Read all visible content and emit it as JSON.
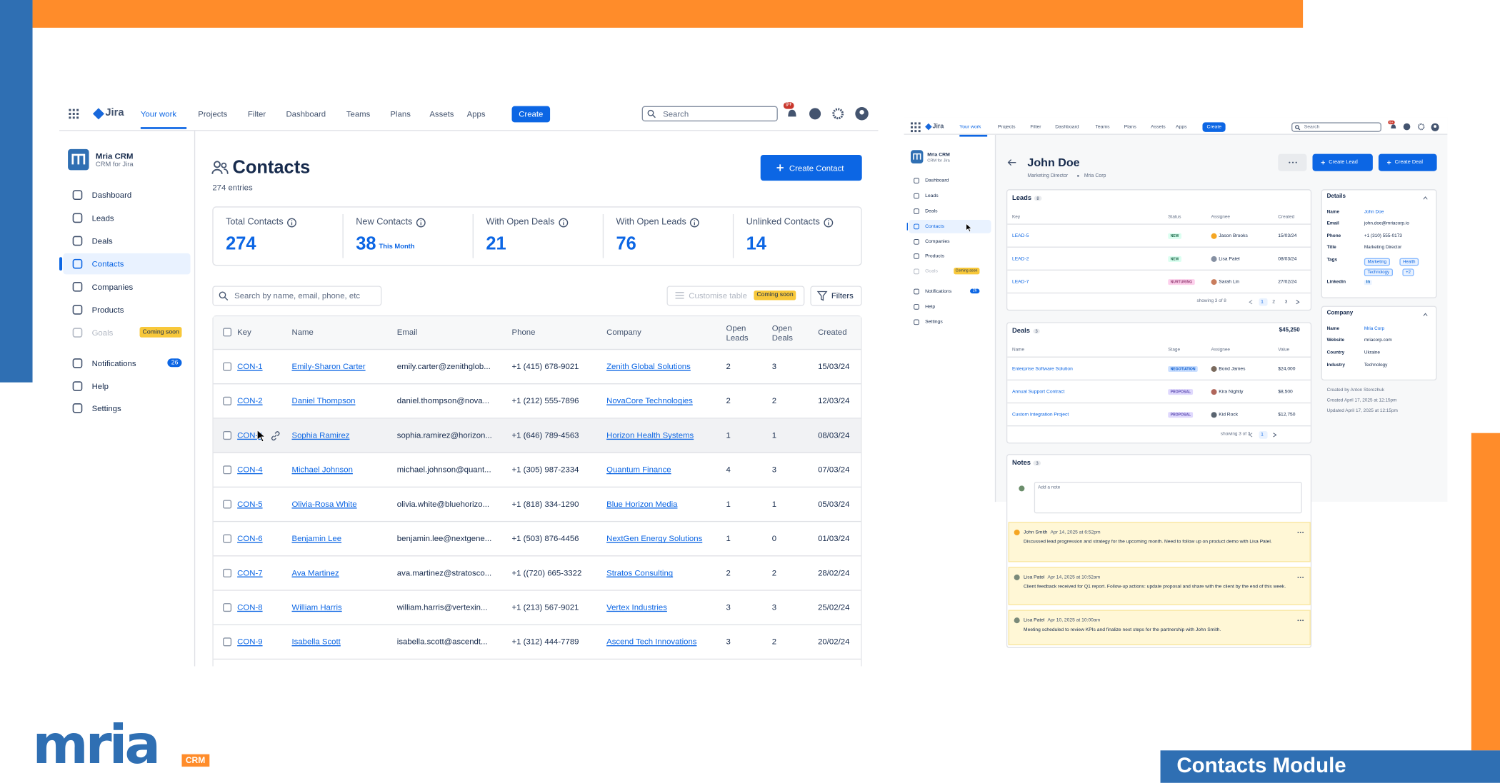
{
  "brand": {
    "logo": "mria",
    "logo_tag": "CRM",
    "caption": "Contacts Module"
  },
  "nav": {
    "app": "Jira",
    "items": [
      "Your work",
      "Projects",
      "Filter",
      "Dashboard",
      "Teams",
      "Plans",
      "Assets",
      "Apps"
    ],
    "create": "Create",
    "search": "Search",
    "badge": "9+"
  },
  "sidebar": {
    "app_name": "Mria CRM",
    "app_sub": "CRM for Jira",
    "items": [
      "Dashboard",
      "Leads",
      "Deals",
      "Contacts",
      "Companies",
      "Products",
      "Goals"
    ],
    "coming_soon": "Coming soon",
    "bottom": [
      "Notifications",
      "Help",
      "Settings"
    ],
    "notif_count": "26"
  },
  "contacts": {
    "title": "Contacts",
    "entries": "274 entries",
    "create_button": "Create Contact",
    "stats": [
      {
        "label": "Total Contacts",
        "value": 274
      },
      {
        "label": "New Contacts",
        "value": 38,
        "note": "This Month"
      },
      {
        "label": "With Open Deals",
        "value": 21
      },
      {
        "label": "With Open Leads",
        "value": 76
      },
      {
        "label": "Unlinked Contacts",
        "value": 14
      }
    ],
    "search_placeholder": "Search by name, email, phone, etc",
    "customise": "Customise table",
    "coming_soon": "Coming soon",
    "filters": "Filters",
    "table": {
      "columns": [
        "Key",
        "Name",
        "Email",
        "Phone",
        "Company",
        "Open Leads",
        "Open Deals",
        "Created"
      ],
      "rows": [
        [
          "CON-1",
          "Emily-Sharon Carter",
          "emily.carter@zenithglob...",
          "+1 (415) 678-9021",
          "Zenith Global Solutions",
          2,
          3,
          "15/03/24"
        ],
        [
          "CON-2",
          "Daniel Thompson",
          "daniel.thompson@nova...",
          "+1 (212) 555-7896",
          "NovaCore Technologies",
          2,
          2,
          "12/03/24"
        ],
        [
          "CON-3",
          "Sophia Ramirez",
          "sophia.ramirez@horizon...",
          "+1 (646) 789-4563",
          "Horizon Health Systems",
          1,
          1,
          "08/03/24"
        ],
        [
          "CON-4",
          "Michael Johnson",
          "michael.johnson@quant...",
          "+1 (305) 987-2334",
          "Quantum Finance",
          4,
          3,
          "07/03/24"
        ],
        [
          "CON-5",
          "Olivia-Rosa White",
          "olivia.white@bluehorizo...",
          "+1 (818) 334-1290",
          "Blue Horizon Media",
          1,
          1,
          "05/03/24"
        ],
        [
          "CON-6",
          "Benjamin Lee",
          "benjamin.lee@nextgene...",
          "+1 (503) 876-4456",
          "NextGen Energy Solutions",
          1,
          0,
          "01/03/24"
        ],
        [
          "CON-7",
          "Ava Martinez",
          "ava.martinez@stratosco...",
          "+1 ((720) 665-3322",
          "Stratos Consulting",
          2,
          2,
          "28/02/24"
        ],
        [
          "CON-8",
          "William Harris",
          "william.harris@vertexin...",
          "+1 (213) 567-9021",
          "Vertex Industries",
          3,
          3,
          "25/02/24"
        ],
        [
          "CON-9",
          "Isabella Scott",
          "isabella.scott@ascendt...",
          "+1 (312) 444-7789",
          "Ascend Tech Innovations",
          3,
          2,
          "20/02/24"
        ]
      ]
    }
  },
  "detail": {
    "name": "John Doe",
    "title": "Marketing Director",
    "company": "Mria Corp",
    "create_lead": "Create Lead",
    "create_deal": "Create Deal",
    "leads": {
      "title": "Leads",
      "count": "8",
      "columns": [
        "Key",
        "Status",
        "Assignee",
        "Created"
      ],
      "rows": [
        [
          "LEAD-5",
          "NEW",
          "Jason Brooks",
          "15/03/24"
        ],
        [
          "LEAD-2",
          "NEW",
          "Lisa Patel",
          "08/03/24"
        ],
        [
          "LEAD-7",
          "NURTURING",
          "Sarah Lin",
          "27/02/24"
        ]
      ],
      "showing": "showing 3 of 8",
      "pages": [
        1,
        2,
        3
      ]
    },
    "deals": {
      "title": "Deals",
      "count": "3",
      "total": "$45,250",
      "columns": [
        "Name",
        "Stage",
        "Assignee",
        "Value"
      ],
      "rows": [
        [
          "Enterprise Software Solution",
          "NEGOTIATION",
          "Bond James",
          "$24,000"
        ],
        [
          "Annual Support Contract",
          "PROPOSAL",
          "Kira Nightly",
          "$8,500"
        ],
        [
          "Custom Integration Project",
          "PROPOSAL",
          "Kid Rock",
          "$12,750"
        ]
      ],
      "showing": "showing 3 of 3",
      "pages": [
        1
      ]
    },
    "notes": {
      "title": "Notes",
      "count": "3",
      "placeholder": "Add a note",
      "items": [
        {
          "author": "John Smith",
          "date": "Apr 14, 2025 at 6:52pm",
          "text": "Discussed lead progression and strategy for the upcoming month. Need to follow up on product demo with Lisa Patel."
        },
        {
          "author": "Lisa Patel",
          "date": "Apr 14, 2025 at 10:52am",
          "text": "Client feedback received for Q1 report. Follow-up actions: update proposal and share with the client by the end of this week."
        },
        {
          "author": "Lisa Patel",
          "date": "Apr 10, 2025 at 10:00am",
          "text": "Meeting scheduled to review KPIs and finalize next steps for the partnership with John Smith."
        }
      ]
    },
    "details": {
      "title": "Details",
      "fields": [
        [
          "Name",
          "John Doe"
        ],
        [
          "Email",
          "john.doe@mriacorp.io"
        ],
        [
          "Phone",
          "+1 (310) 555-0173"
        ],
        [
          "Title",
          "Marketing Director"
        ]
      ],
      "tags_label": "Tags",
      "tags": [
        "Marketing",
        "Health",
        "Technology",
        "+2"
      ],
      "linkedin_label": "Linkedin",
      "linkedin": "in"
    },
    "company_card": {
      "title": "Company",
      "fields": [
        [
          "Name",
          "Mria Corp"
        ],
        [
          "Website",
          "mriacorp.com"
        ],
        [
          "Country",
          "Ukraine"
        ],
        [
          "Industry",
          "Technology"
        ]
      ]
    },
    "meta": [
      "Created by Anton Storozhuk",
      "Created April 17, 2025 at 12:15pm",
      "Updated April 17, 2025 at 12:15pm"
    ]
  }
}
